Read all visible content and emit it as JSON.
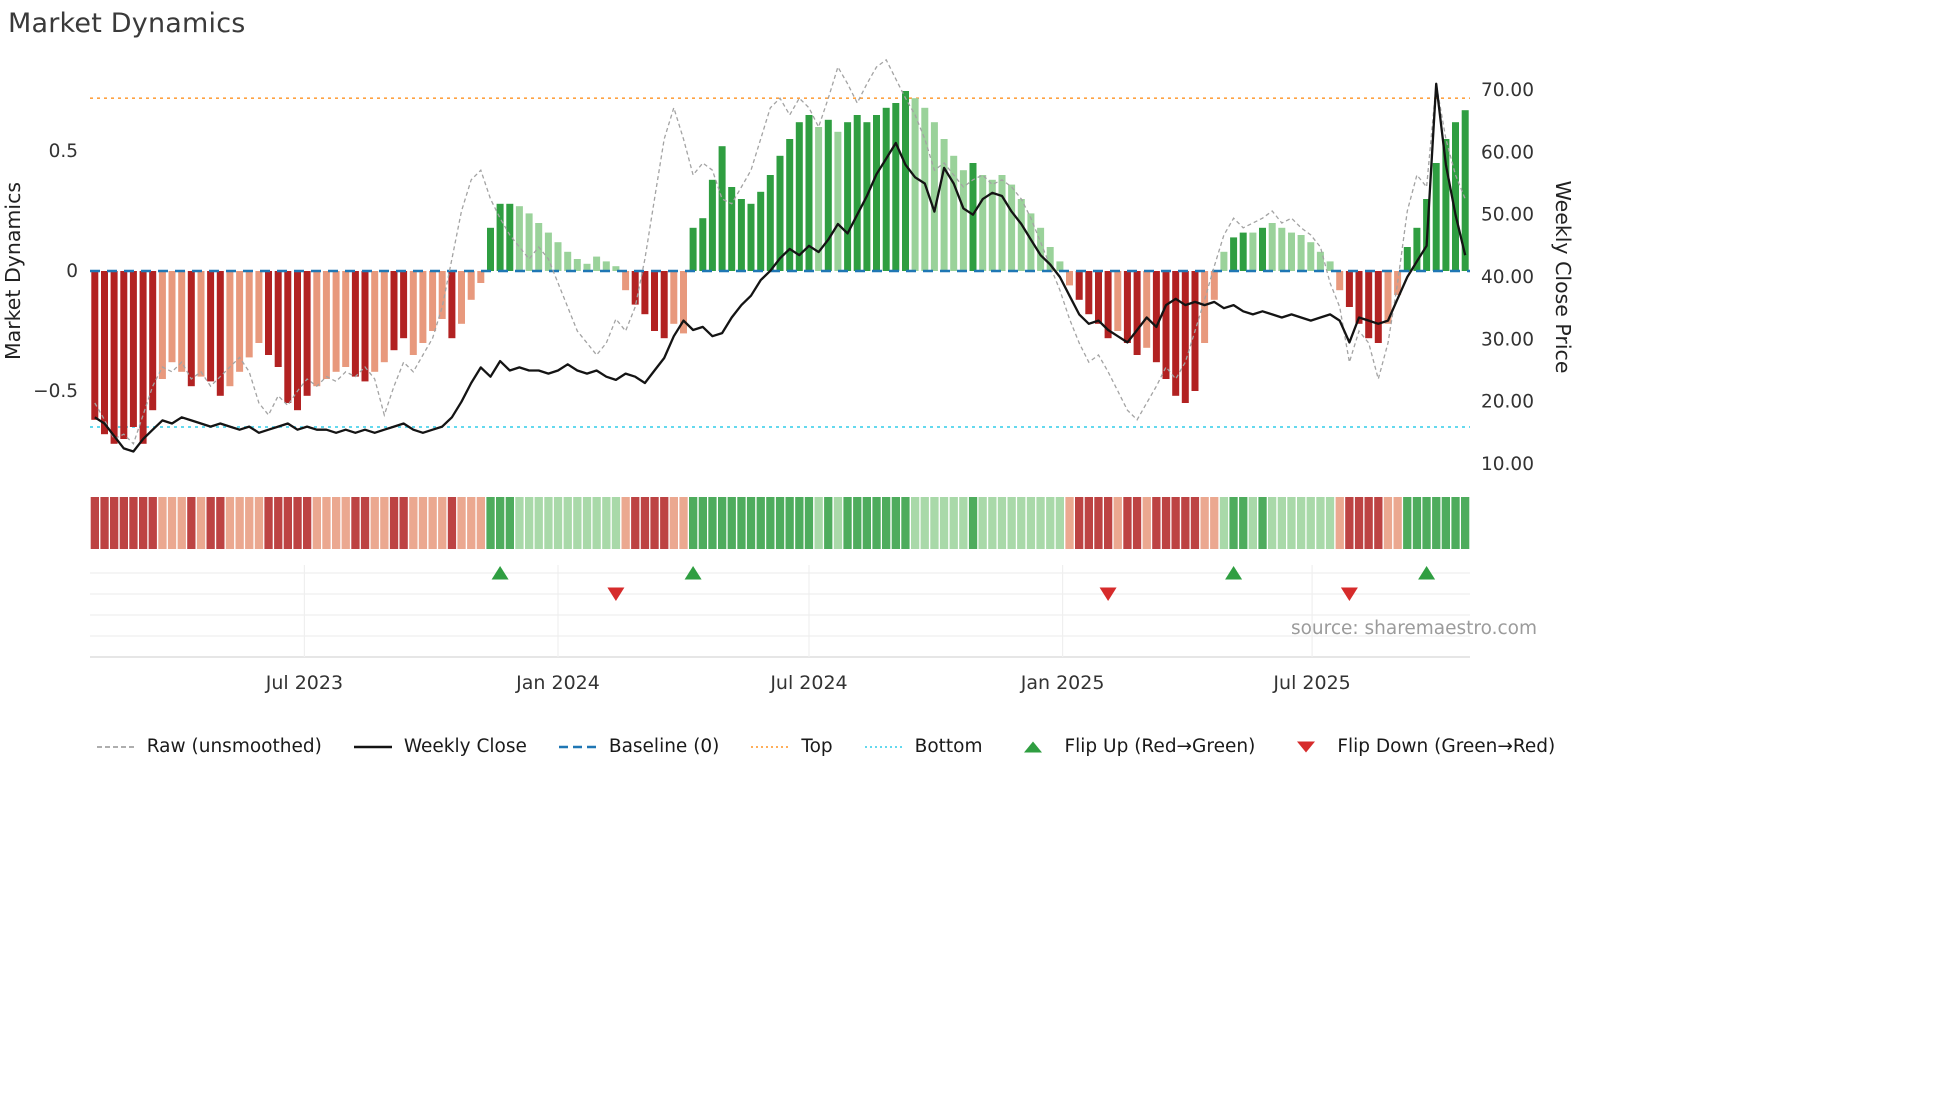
{
  "title": "Market Dynamics",
  "source": "source: sharemaestro.com",
  "axes": {
    "left_label": "Market Dynamics",
    "right_label": "Weekly Close Price",
    "left_ticks": [
      {
        "v": 0.5,
        "label": "0.5"
      },
      {
        "v": 0,
        "label": "0"
      },
      {
        "v": -0.5,
        "label": "−0.5"
      }
    ],
    "right_ticks": [
      {
        "v": 70,
        "label": "70.00"
      },
      {
        "v": 60,
        "label": "60.00"
      },
      {
        "v": 50,
        "label": "50.00"
      },
      {
        "v": 40,
        "label": "40.00"
      },
      {
        "v": 30,
        "label": "30.00"
      },
      {
        "v": 20,
        "label": "20.00"
      },
      {
        "v": 10,
        "label": "10.00"
      }
    ],
    "x_ticks": [
      {
        "date": "2023-07-01",
        "label": "Jul 2023"
      },
      {
        "date": "2024-01-01",
        "label": "Jan 2024"
      },
      {
        "date": "2024-07-01",
        "label": "Jul 2024"
      },
      {
        "date": "2025-01-01",
        "label": "Jan 2025"
      },
      {
        "date": "2025-07-01",
        "label": "Jul 2025"
      }
    ]
  },
  "colors": {
    "bar_red_dark": "#b22222",
    "bar_red_light": "#e8997d",
    "bar_green_dark": "#2f9e41",
    "bar_green_light": "#9ad29a",
    "price": "#141414",
    "raw": "#a3a3a3",
    "baseline": "#1f77b4",
    "top": "#ffa242",
    "bottom": "#4fd4ec",
    "flip_up": "#2f9e41",
    "flip_down": "#d62b2b",
    "tick_text": "#333333",
    "source_text": "#9b9b9b",
    "panel_grid": "#efefef",
    "panel_spine": "#d8d8d8"
  },
  "chart_data": {
    "type": "bar+line",
    "title": "Market Dynamics",
    "xlabel": "",
    "ylabel_left": "Market Dynamics",
    "ylabel_right": "Weekly Close Price",
    "left_ylim": [
      -0.9,
      0.9
    ],
    "right_ylim": [
      7.5,
      75
    ],
    "grid": "off",
    "legend_position": "bottom",
    "start_date": "2023-01-30",
    "interval_days": 7,
    "reference_lines": {
      "baseline": 0,
      "top": 0.72,
      "bottom": -0.65
    },
    "oscillator": {
      "name": "Market Dynamics oscillator (weekly bars, red negative / green positive, dark-light intensity)",
      "values": [
        -0.62,
        -0.68,
        -0.72,
        -0.7,
        -0.65,
        -0.72,
        -0.58,
        -0.45,
        -0.38,
        -0.42,
        -0.48,
        -0.44,
        -0.46,
        -0.52,
        -0.48,
        -0.42,
        -0.36,
        -0.3,
        -0.35,
        -0.4,
        -0.55,
        -0.58,
        -0.52,
        -0.48,
        -0.45,
        -0.42,
        -0.4,
        -0.44,
        -0.46,
        -0.42,
        -0.38,
        -0.33,
        -0.28,
        -0.35,
        -0.3,
        -0.25,
        -0.2,
        -0.28,
        -0.22,
        -0.12,
        -0.05,
        0.18,
        0.28,
        0.28,
        0.27,
        0.24,
        0.2,
        0.16,
        0.12,
        0.08,
        0.05,
        0.03,
        0.06,
        0.04,
        0.02,
        -0.08,
        -0.14,
        -0.18,
        -0.25,
        -0.28,
        -0.22,
        -0.26,
        0.18,
        0.22,
        0.38,
        0.52,
        0.35,
        0.3,
        0.28,
        0.33,
        0.4,
        0.48,
        0.55,
        0.62,
        0.65,
        0.6,
        0.63,
        0.58,
        0.62,
        0.65,
        0.62,
        0.65,
        0.68,
        0.7,
        0.75,
        0.72,
        0.68,
        0.62,
        0.55,
        0.48,
        0.42,
        0.45,
        0.4,
        0.38,
        0.4,
        0.36,
        0.3,
        0.24,
        0.18,
        0.1,
        0.04,
        -0.06,
        -0.12,
        -0.18,
        -0.22,
        -0.28,
        -0.25,
        -0.3,
        -0.35,
        -0.32,
        -0.38,
        -0.45,
        -0.52,
        -0.55,
        -0.5,
        -0.3,
        -0.12,
        0.08,
        0.14,
        0.16,
        0.16,
        0.18,
        0.2,
        0.18,
        0.16,
        0.15,
        0.12,
        0.08,
        0.04,
        -0.08,
        -0.15,
        -0.22,
        -0.28,
        -0.3,
        -0.22,
        -0.1,
        0.1,
        0.18,
        0.3,
        0.45,
        0.55,
        0.62,
        0.67
      ],
      "shades": "dddddddllldlddlllldddddllllddllddlllldllldddllllllllllllddddlldddddddddddddldldddddddlllllldllllllllllddddlddldddddlllddldllllllllddddllddddddd"
    },
    "series": [
      {
        "name": "Raw (unsmoothed)",
        "type": "line",
        "style": "dashed",
        "axis": "left",
        "values": [
          -0.55,
          -0.62,
          -0.7,
          -0.68,
          -0.72,
          -0.6,
          -0.48,
          -0.4,
          -0.42,
          -0.38,
          -0.45,
          -0.42,
          -0.48,
          -0.44,
          -0.4,
          -0.36,
          -0.42,
          -0.55,
          -0.6,
          -0.52,
          -0.56,
          -0.5,
          -0.45,
          -0.48,
          -0.44,
          -0.46,
          -0.42,
          -0.44,
          -0.4,
          -0.45,
          -0.6,
          -0.48,
          -0.38,
          -0.42,
          -0.35,
          -0.28,
          -0.15,
          0.05,
          0.25,
          0.38,
          0.42,
          0.3,
          0.22,
          0.15,
          0.1,
          0.05,
          0.1,
          0.05,
          -0.05,
          -0.15,
          -0.25,
          -0.3,
          -0.35,
          -0.3,
          -0.2,
          -0.25,
          -0.15,
          0.05,
          0.3,
          0.55,
          0.68,
          0.55,
          0.4,
          0.45,
          0.42,
          0.3,
          0.28,
          0.35,
          0.42,
          0.55,
          0.68,
          0.72,
          0.65,
          0.72,
          0.68,
          0.6,
          0.72,
          0.85,
          0.78,
          0.7,
          0.78,
          0.85,
          0.88,
          0.8,
          0.72,
          0.65,
          0.55,
          0.42,
          0.45,
          0.4,
          0.35,
          0.38,
          0.4,
          0.36,
          0.38,
          0.35,
          0.3,
          0.22,
          0.12,
          0.02,
          -0.08,
          -0.2,
          -0.3,
          -0.38,
          -0.35,
          -0.42,
          -0.5,
          -0.58,
          -0.62,
          -0.55,
          -0.48,
          -0.4,
          -0.45,
          -0.38,
          -0.25,
          -0.12,
          0.02,
          0.15,
          0.22,
          0.18,
          0.2,
          0.22,
          0.25,
          0.2,
          0.22,
          0.18,
          0.15,
          0.1,
          -0.05,
          -0.15,
          -0.38,
          -0.25,
          -0.3,
          -0.45,
          -0.3,
          -0.05,
          0.25,
          0.4,
          0.35,
          0.78,
          0.55,
          0.4,
          0.3
        ]
      },
      {
        "name": "Weekly Close",
        "type": "line",
        "style": "solid",
        "axis": "right",
        "values": [
          17.5,
          16.5,
          14.5,
          12.5,
          12.0,
          14.0,
          15.5,
          17.0,
          16.5,
          17.5,
          17.0,
          16.5,
          16.0,
          16.5,
          16.0,
          15.5,
          16.0,
          15.0,
          15.5,
          16.0,
          16.5,
          15.5,
          16.0,
          15.5,
          15.5,
          15.0,
          15.5,
          15.0,
          15.5,
          15.0,
          15.5,
          16.0,
          16.5,
          15.5,
          15.0,
          15.5,
          16.0,
          17.5,
          20.0,
          23.0,
          25.5,
          24.0,
          26.5,
          25.0,
          25.5,
          25.0,
          25.0,
          24.5,
          25.0,
          26.0,
          25.0,
          24.5,
          25.0,
          24.0,
          23.5,
          24.5,
          24.0,
          23.0,
          25.0,
          27.0,
          30.5,
          33.0,
          31.5,
          32.0,
          30.5,
          31.0,
          33.5,
          35.5,
          37.0,
          39.5,
          41.0,
          43.0,
          44.5,
          43.5,
          45.0,
          44.0,
          46.0,
          48.5,
          47.0,
          50.0,
          53.0,
          56.5,
          59.0,
          61.5,
          58.0,
          56.0,
          55.0,
          50.5,
          57.5,
          55.0,
          51.0,
          50.0,
          52.5,
          53.5,
          53.0,
          50.5,
          48.5,
          46.0,
          43.5,
          42.0,
          40.0,
          37.0,
          34.0,
          32.5,
          33.0,
          31.5,
          30.5,
          29.5,
          31.5,
          33.5,
          32.0,
          35.5,
          36.5,
          35.5,
          36.0,
          35.5,
          36.0,
          35.0,
          35.5,
          34.5,
          34.0,
          34.5,
          34.0,
          33.5,
          34.0,
          33.5,
          33.0,
          33.5,
          34.0,
          33.0,
          29.5,
          33.5,
          33.0,
          32.5,
          33.0,
          36.5,
          40.0,
          42.5,
          45.0,
          71.0,
          58.0,
          50.0,
          43.5
        ]
      }
    ],
    "flips": {
      "up_label": "Flip Up (Red→Green)",
      "down_label": "Flip Down (Green→Red)",
      "up_weeks": [
        42,
        62,
        118,
        138
      ],
      "down_weeks": [
        54,
        105,
        130
      ]
    },
    "heatmap_strip": "same weekly colors as oscillator bars, full-height cells"
  },
  "legend": {
    "items": [
      {
        "glyph": "line-dashed",
        "label": "Raw (unsmoothed)",
        "color": "#a3a3a3"
      },
      {
        "glyph": "line-solid",
        "label": "Weekly Close",
        "color": "#141414"
      },
      {
        "glyph": "line-longdash",
        "label": "Baseline (0)",
        "color": "#1f77b4"
      },
      {
        "glyph": "line-dotted",
        "label": "Top",
        "color": "#ffa242"
      },
      {
        "glyph": "line-dotted",
        "label": "Bottom",
        "color": "#4fd4ec"
      },
      {
        "glyph": "triangle-up",
        "label": "Flip Up (Red→Green)",
        "color": "#2f9e41"
      },
      {
        "glyph": "triangle-down",
        "label": "Flip Down (Green→Red)",
        "color": "#d62b2b"
      }
    ]
  }
}
